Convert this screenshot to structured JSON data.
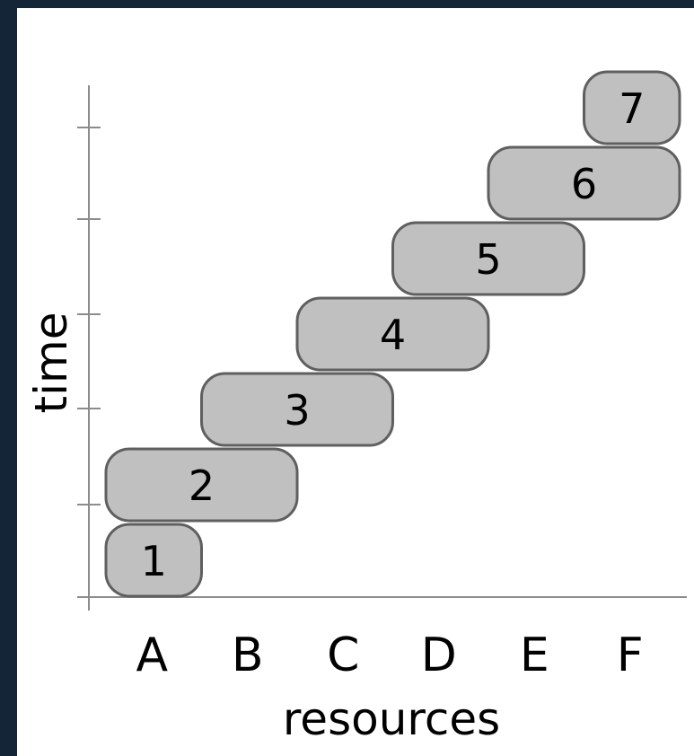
{
  "diagram": {
    "x_axis_title": "resources",
    "y_axis_title": "time",
    "resources": [
      "A",
      "B",
      "C",
      "D",
      "E",
      "F"
    ],
    "tasks": [
      {
        "label": "1",
        "start_resource": 0,
        "span": 1,
        "time_slot": 0
      },
      {
        "label": "2",
        "start_resource": 0,
        "span": 2,
        "time_slot": 1
      },
      {
        "label": "3",
        "start_resource": 1,
        "span": 2,
        "time_slot": 2
      },
      {
        "label": "4",
        "start_resource": 2,
        "span": 2,
        "time_slot": 3
      },
      {
        "label": "5",
        "start_resource": 3,
        "span": 2,
        "time_slot": 4
      },
      {
        "label": "6",
        "start_resource": 4,
        "span": 2,
        "time_slot": 5
      },
      {
        "label": "7",
        "start_resource": 5,
        "span": 1,
        "time_slot": 6
      }
    ],
    "colors": {
      "frame": "#132536",
      "box_fill": "#c0c0c0",
      "box_stroke": "#5f5f5f",
      "axis": "#8c8c8c"
    }
  }
}
